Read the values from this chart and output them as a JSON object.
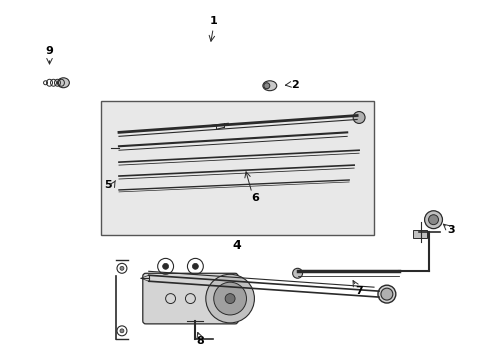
{
  "bg_color": "#ffffff",
  "line_color": "#2a2a2a",
  "label_color": "#000000",
  "inner_box_bg": "#e8e8e8",
  "figsize": [
    4.89,
    3.6
  ],
  "dpi": 100
}
